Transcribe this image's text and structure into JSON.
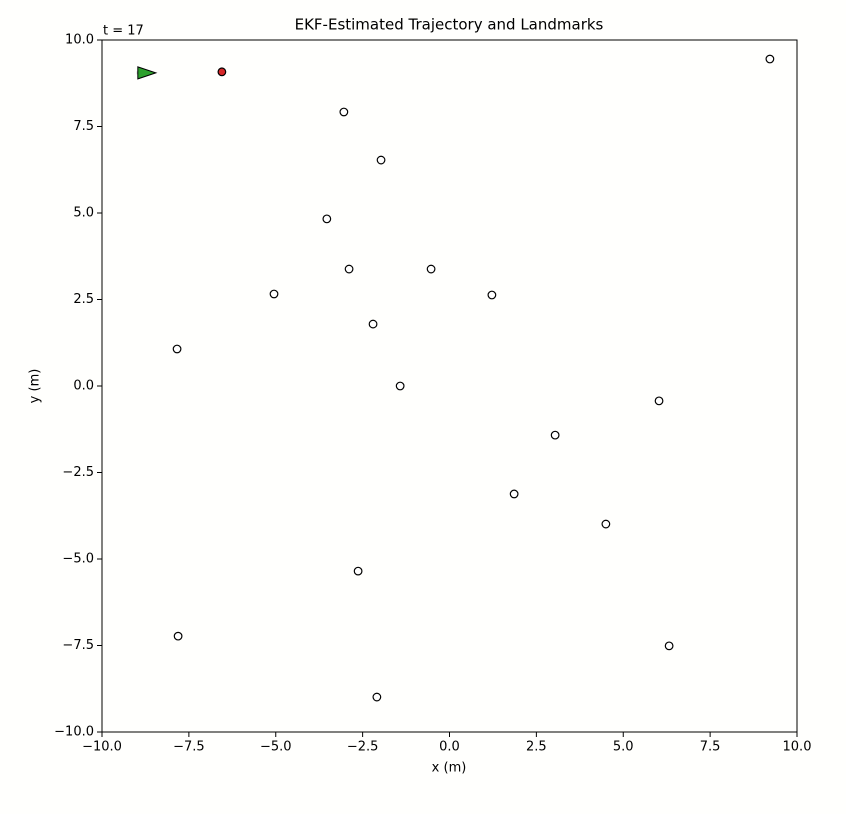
{
  "chart_data": {
    "type": "scatter",
    "title": "EKF-Estimated Trajectory and Landmarks",
    "annotation": "t = 17",
    "x_label": "x (m)",
    "y_label": "y (m)",
    "xlim": [
      -10,
      10
    ],
    "ylim": [
      -10,
      10
    ],
    "xticks": [
      {
        "value": -10,
        "label": "−10.0"
      },
      {
        "value": -7.5,
        "label": "−7.5"
      },
      {
        "value": -5,
        "label": "−5.0"
      },
      {
        "value": -2.5,
        "label": "−2.5"
      },
      {
        "value": 0,
        "label": "0.0"
      },
      2.5,
      {
        "value": 5,
        "label": "5.0"
      },
      7.5,
      {
        "value": 10,
        "label": "10.0"
      }
    ],
    "yticks": [
      {
        "value": -10,
        "label": "−10.0"
      },
      {
        "value": -7.5,
        "label": "−7.5"
      },
      {
        "value": -5,
        "label": "−5.0"
      },
      {
        "value": -2.5,
        "label": "−2.5"
      },
      {
        "value": 0,
        "label": "0.0"
      },
      2.5,
      {
        "value": 5,
        "label": "5.0"
      },
      7.5,
      {
        "value": 10,
        "label": "10.0"
      }
    ],
    "series": [
      {
        "kind": "landmark",
        "color": "#ffffff",
        "x": [
          9.22,
          -3.04,
          -1.97,
          -3.53,
          -2.89,
          -0.53,
          -5.05,
          1.22,
          -2.2,
          -7.84,
          -1.42,
          6.03,
          3.04,
          1.86,
          4.5,
          -2.63,
          -7.81,
          6.32,
          -2.09
        ],
        "y": [
          9.45,
          7.92,
          6.53,
          4.83,
          3.38,
          3.38,
          2.66,
          2.63,
          1.79,
          1.07,
          0.0,
          -0.43,
          -1.42,
          -3.12,
          -3.99,
          -5.35,
          -7.23,
          -7.51,
          -8.99
        ]
      },
      {
        "kind": "trajectory",
        "color": "#bbbbbb",
        "x": [
          -9.0,
          -8.8
        ],
        "y": [
          9.05,
          9.05
        ]
      },
      {
        "kind": "pose",
        "color": "#2ca02c",
        "x": [
          -8.71
        ],
        "y": [
          9.05
        ]
      },
      {
        "kind": "point",
        "color": "#d62728",
        "x": [
          -6.55
        ],
        "y": [
          9.08
        ]
      }
    ]
  }
}
